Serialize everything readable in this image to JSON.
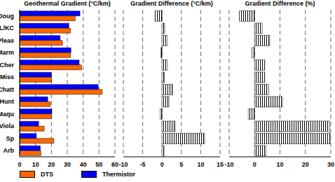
{
  "chart_data": [
    {
      "type": "bar",
      "orientation": "horizontal",
      "title": "Geothermal Gradient (°C/km)",
      "categories": [
        "Doug",
        "L/KC",
        "Pleas",
        "Marm",
        "Cher",
        "Miss",
        "Chatt",
        "Hunt",
        "Maqu",
        "Viola",
        "Sp",
        "Arb"
      ],
      "series": [
        {
          "name": "DTS",
          "color": "#ff6600",
          "values": [
            35,
            32,
            27,
            32,
            39,
            20,
            52,
            19.4,
            20,
            15.5,
            21.5,
            13.4
          ]
        },
        {
          "name": "Thermistor",
          "color": "#0000ff",
          "values": [
            38,
            31,
            25.5,
            32.3,
            37.5,
            20,
            49.5,
            17.7,
            20.3,
            12,
            10.5,
            13
          ]
        }
      ],
      "xlim": [
        0,
        60
      ],
      "xticks": [
        0,
        10,
        20,
        30,
        40,
        50,
        60
      ],
      "grid": true,
      "legend": "bottom"
    },
    {
      "type": "bar",
      "orientation": "horizontal",
      "title": "Gradient Difference (°C/km)",
      "categories": [
        "Doug",
        "L/KC",
        "Pleas",
        "Marm",
        "Cher",
        "Miss",
        "Chatt",
        "Hunt",
        "Maqu",
        "Viola",
        "Sp",
        "Arb"
      ],
      "values": [
        -1.8,
        0.7,
        1.4,
        -0.3,
        1.4,
        0.6,
        2.7,
        1.8,
        -0.5,
        3.4,
        11,
        0.5
      ],
      "color": "#000000",
      "xlim": [
        -10,
        15
      ],
      "xticks": [
        -10,
        -5,
        0,
        5,
        10,
        15
      ],
      "grid": true,
      "tick_labels": "x"
    },
    {
      "type": "bar",
      "orientation": "horizontal",
      "title": "Gradient Difference (%)",
      "categories": [
        "Doug",
        "L/KC",
        "Pleas",
        "Marm",
        "Cher",
        "Miss",
        "Chatt",
        "Hunt",
        "Maqu",
        "Viola",
        "Sp",
        "Arb"
      ],
      "values": [
        -6,
        3,
        6,
        -1,
        4,
        4,
        5.5,
        11,
        -2.5,
        29.5,
        30,
        4.5
      ],
      "color": "#000000",
      "xlim": [
        -10,
        30
      ],
      "xticks": [
        -10,
        0,
        10,
        20,
        30
      ],
      "grid": true,
      "tick_labels": "x"
    }
  ]
}
